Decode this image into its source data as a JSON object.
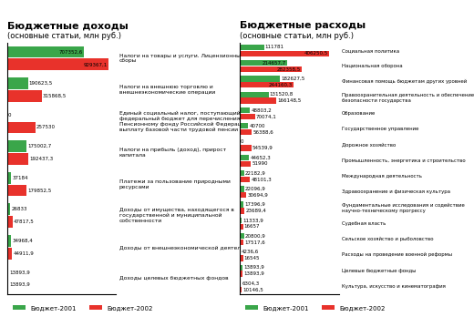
{
  "chart_data": [
    {
      "type": "bar",
      "orientation": "horizontal",
      "title": "Бюджетные доходы",
      "subtitle": "(основные статьи, млн руб.)",
      "categories": [
        "Налоги на товары и услуги. Лицензионные сборы",
        "Налоги на внешнюю торговлю и внешнеэкономические операции",
        "Единый социальный налог, поступающий в федеральный бюджет для перечисления Пенсионному фонду Российской Федерации на выплату базовой части трудовой пенсии",
        "Налоги на прибыль (доход), прирост капитала",
        "Платежи за пользование природными ресурсами",
        "Доходы от имущества, находящегося в государственной и муниципальной собственности",
        "Доходы от внешнеэкономической деятельности",
        "Доходы целевых бюджетных фондов"
      ],
      "series": [
        {
          "name": "Бюджет-2001",
          "color": "#3aa64a",
          "values": [
            707352.6,
            190623.5,
            0,
            175002.7,
            37184,
            26833,
            34968.4,
            13893.9
          ],
          "value_labels": [
            "707352,6",
            "190623,5",
            "0",
            "175002,7",
            "37184",
            "26833",
            "34968,4",
            "13893,9"
          ]
        },
        {
          "name": "Бюджет-2002",
          "color": "#e8322b",
          "values": [
            929367.1,
            315868.5,
            257530,
            192437.3,
            179852.5,
            47817.5,
            44911.9,
            13893.9
          ],
          "value_labels": [
            "929367,1",
            "315868,5",
            "257530",
            "192437,3",
            "179852,5",
            "47817,5",
            "44911,9",
            "13893,9"
          ]
        }
      ],
      "xlim": [
        0,
        1000000
      ],
      "xticks": [],
      "tick_labels": false,
      "data_labels": true,
      "legend": "upper left"
    },
    {
      "type": "bar",
      "orientation": "horizontal",
      "title": "Бюджетные расходы",
      "subtitle": "(основные статьи, млн руб.)",
      "categories": [
        "Социальная политика",
        "Национальная оборона",
        "Финансовая помощь бюджетам других уровней",
        "Правоохранительная деятельность и обеспечение безопасности государства",
        "Образование",
        "Государственное управление",
        "Дорожное хозяйство",
        "Промышленность, энергетика и строительство",
        "Международная деятельность",
        "Здравоохранение и физическая культура",
        "Фундаментальные исследования и содействие научно-техническому прогрессу",
        "Судебная власть",
        "Сельское хозяйство и рыболовство",
        "Расходы на проведение военной реформы",
        "Целевые бюджетные фонды",
        "Культура, искусство и кинематография"
      ],
      "series": [
        {
          "name": "Бюджет-2001",
          "color": "#3aa64a",
          "values": [
            111781,
            214657.7,
            182627.5,
            131520.8,
            48803.2,
            40700,
            0,
            44652.3,
            22182.9,
            22096.9,
            17396.9,
            11333.9,
            20800.9,
            4236.6,
            13893.9,
            6304.3
          ],
          "value_labels": [
            "111781",
            "214657,7",
            "182627,5",
            "131520,8",
            "48803,2",
            "40700",
            "0",
            "44652,3",
            "22182,9",
            "22096,9",
            "17396,9",
            "11333,9",
            "20800,9",
            "4236,6",
            "13893,9",
            "6304,3"
          ]
        },
        {
          "name": "Бюджет-2002",
          "color": "#e8322b",
          "values": [
            406250.5,
            282358.5,
            244160.3,
            166148.5,
            70074.1,
            56388.6,
            54539.9,
            51990,
            48101.3,
            30694.9,
            23689.4,
            16657,
            17517.6,
            16545,
            13893.9,
            10146.5
          ],
          "value_labels": [
            "406250,5",
            "282358,5",
            "244160,3",
            "166148,5",
            "70074,1",
            "56388,6",
            "54539,9",
            "51990",
            "48101,3",
            "30694,9",
            "23689,4",
            "16657",
            "17517,6",
            "16545",
            "13893,9",
            "10146,5"
          ]
        }
      ],
      "xlim": [
        0,
        450000
      ],
      "xticks": [],
      "tick_labels": false,
      "data_labels": true,
      "legend": "upper left"
    }
  ]
}
